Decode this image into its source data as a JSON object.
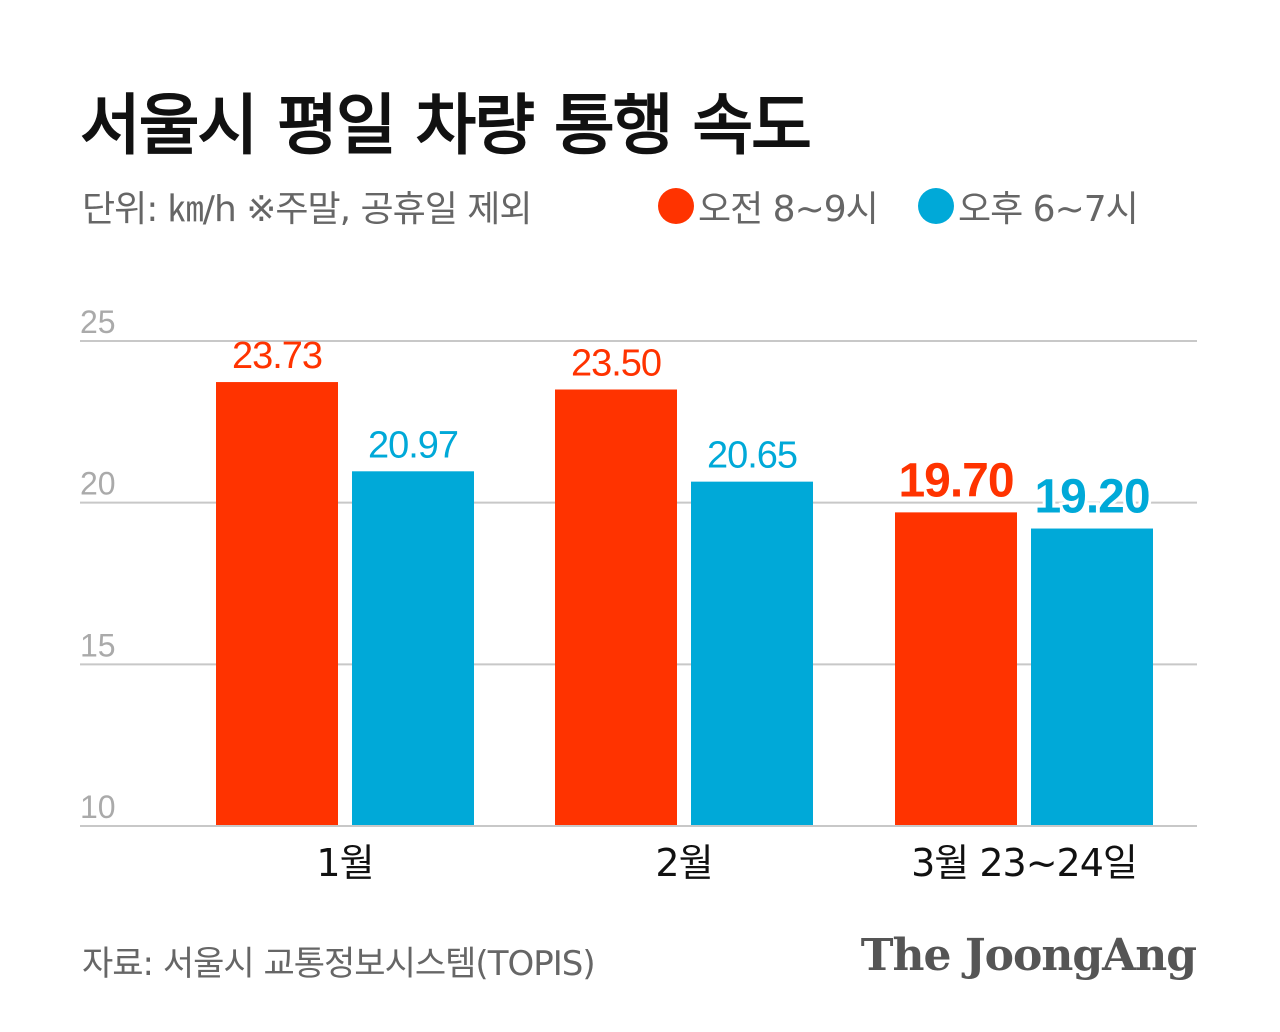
{
  "chart_data": {
    "type": "bar",
    "title": "서울시 평일 차량 통행 속도",
    "subtitle": "단위: ㎞/h ※주말, 공휴일 제외",
    "categories": [
      "1월",
      "2월",
      "3월 23~24일"
    ],
    "series": [
      {
        "name": "오전 8~9시",
        "color": "#ff3300",
        "values": [
          23.73,
          23.5,
          19.7
        ],
        "labels": [
          "23.73",
          "23.50",
          "19.70"
        ]
      },
      {
        "name": "오후 6~7시",
        "color": "#00a9d8",
        "values": [
          20.97,
          20.65,
          19.2
        ],
        "labels": [
          "20.97",
          "20.65",
          "19.20"
        ]
      }
    ],
    "yticks": [
      "25",
      "20",
      "15",
      "10"
    ],
    "ylim": [
      10,
      25
    ],
    "grid": true,
    "legend_placement": "top-right"
  },
  "source": "자료: 서울시 교통정보시스템(TOPIS)",
  "brand": "The JoongAng"
}
